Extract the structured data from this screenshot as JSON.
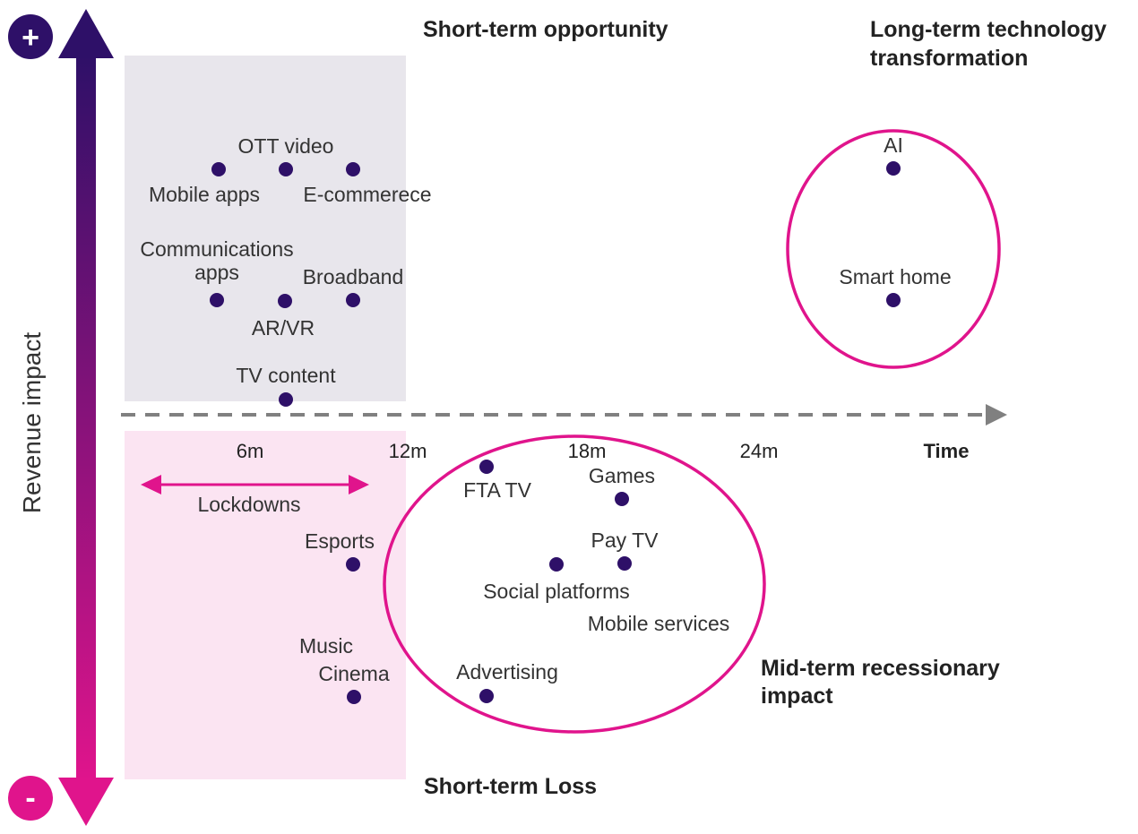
{
  "axes": {
    "y_label": "Revenue impact",
    "y_top_sign": "+",
    "y_bottom_sign": "-",
    "x_label": "Time",
    "x_ticks": [
      "6m",
      "12m",
      "18m",
      "24m"
    ]
  },
  "zones": {
    "short_term_opportunity": "Short-term opportunity",
    "long_term_technology": [
      "Long-term technology",
      "transformation"
    ],
    "mid_term_recessionary": [
      "Mid-term recessionary",
      "impact"
    ],
    "short_term_loss": "Short-term Loss",
    "lockdowns": "Lockdowns"
  },
  "items": {
    "ott_video": "OTT video",
    "mobile_apps": "Mobile apps",
    "e_commerce": "E-commerece",
    "communications_apps": [
      "Communications",
      "apps"
    ],
    "broadband": "Broadband",
    "ar_vr": "AR/VR",
    "tv_content": "TV content",
    "ai": "AI",
    "smart_home": "Smart home",
    "fta_tv": "FTA TV",
    "games": "Games",
    "pay_tv": "Pay TV",
    "social_platforms": "Social platforms",
    "mobile_services": "Mobile services",
    "advertising": "Advertising",
    "esports": "Esports",
    "music": "Music",
    "cinema": "Cinema"
  },
  "colors": {
    "dot": "#2e1068",
    "magenta": "#e0148c",
    "purple": "#2e1068",
    "grey_zone": "#e8e6ec",
    "pink_zone": "#fbe4f2",
    "axis_dash": "#808080"
  }
}
